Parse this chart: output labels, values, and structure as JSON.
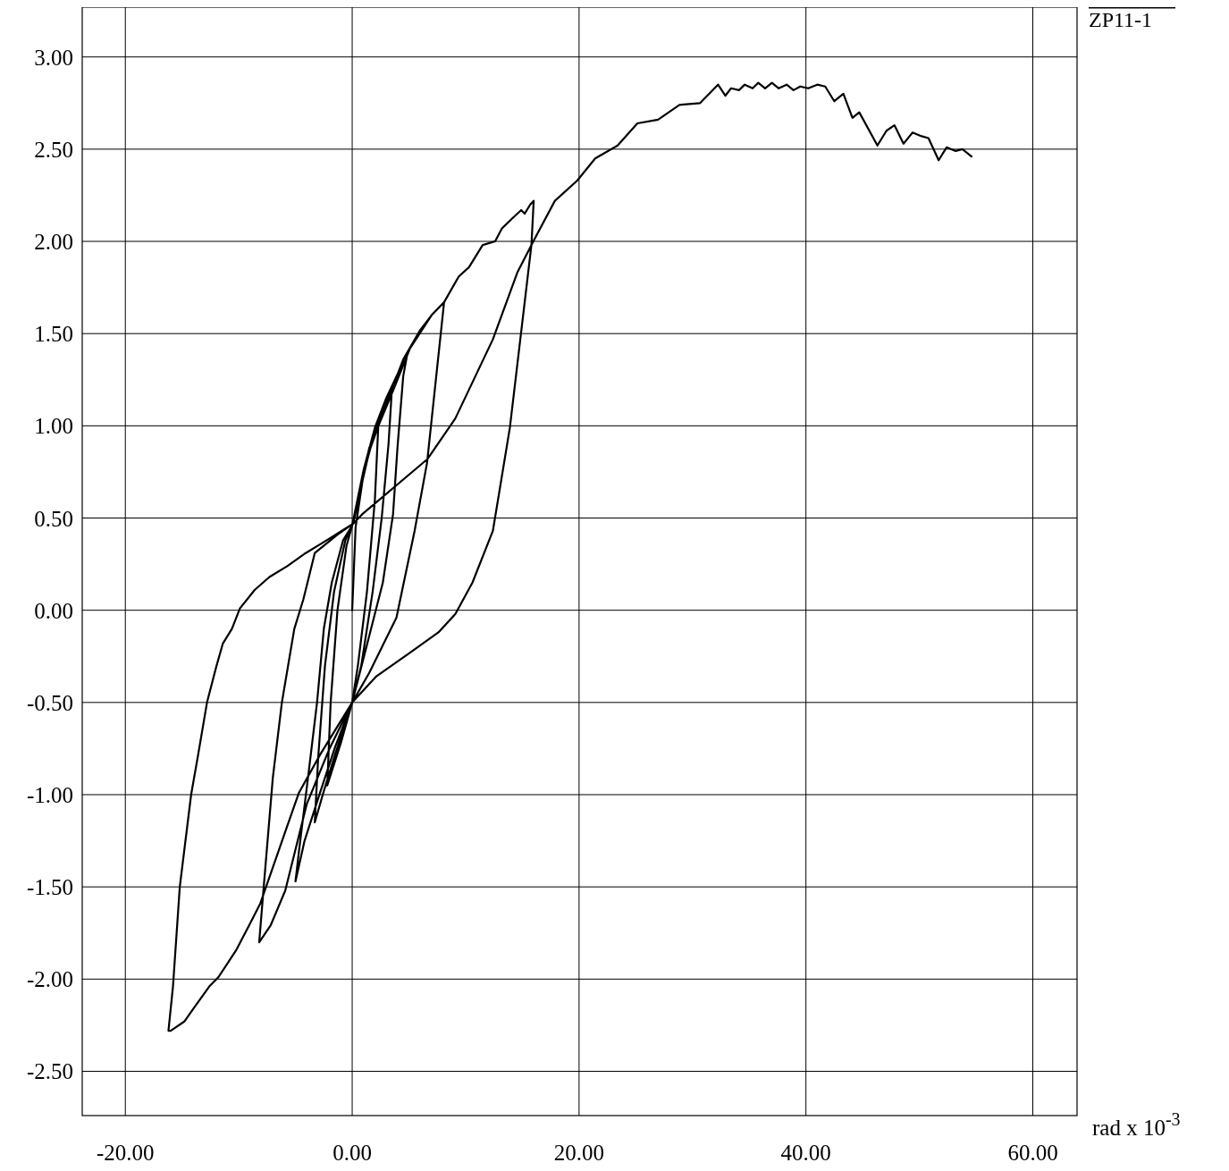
{
  "chart_data": {
    "type": "line",
    "xlabel": "rad x 10$^{-3}$",
    "xlim": [
      -23.8,
      63.9
    ],
    "ylim": [
      -2.74,
      3.27
    ],
    "xticks": [
      {
        "value": -20,
        "label": "-20.00"
      },
      {
        "value": 0,
        "label": "0.00"
      },
      {
        "value": 20,
        "label": "20.00"
      },
      {
        "value": 40,
        "label": "40.00"
      },
      {
        "value": 60,
        "label": "60.00"
      }
    ],
    "yticks": [
      {
        "value": -2.5,
        "label": "-2.50"
      },
      {
        "value": -2,
        "label": "-2.00"
      },
      {
        "value": -1.5,
        "label": "-1.50"
      },
      {
        "value": -1,
        "label": "-1.00"
      },
      {
        "value": -0.5,
        "label": "-0.50"
      },
      {
        "value": 0,
        "label": "0.00"
      },
      {
        "value": 0.5,
        "label": "0.50"
      },
      {
        "value": 1,
        "label": "1.00"
      },
      {
        "value": 1.5,
        "label": "1.50"
      },
      {
        "value": 2,
        "label": "2.00"
      },
      {
        "value": 2.5,
        "label": "2.50"
      },
      {
        "value": 3,
        "label": "3.00"
      }
    ],
    "grid": true,
    "legend": "top right",
    "series": [
      {
        "name": "ZP11-1",
        "color": "#000000",
        "x": [
          0,
          0.3,
          1,
          1.7,
          2.3,
          2.0,
          1.3,
          0.5,
          0,
          -1,
          -2.2,
          -1.9,
          -1.3,
          -0.5,
          0,
          1,
          2,
          2.8,
          3.5,
          3.2,
          2.6,
          1.8,
          0.8,
          0,
          -1.5,
          -2.5,
          -3.3,
          -3.0,
          -2.4,
          -1.6,
          -0.6,
          0,
          1,
          2,
          3,
          4,
          4.8,
          4.5,
          4.0,
          3.6,
          2.7,
          1.5,
          0,
          -1.5,
          -3,
          -4.2,
          -5.0,
          -4.7,
          -3.9,
          -3.1,
          -2.5,
          -1.8,
          -0.8,
          0,
          1.5,
          3,
          4.5,
          6,
          7,
          8.1,
          6.6,
          5.5,
          3.9,
          1.5,
          0,
          -2.0,
          -4.0,
          -5.9,
          -7.2,
          -8.2,
          -7.8,
          -7.0,
          -6.2,
          -5.1,
          -4.3,
          -3.3,
          -1.3,
          0.1,
          1.5,
          3.6,
          5.1,
          7.0,
          8.1,
          9.4,
          10.3,
          11.5,
          12.6,
          13.2,
          14.2,
          14.9,
          15.2,
          15.7,
          16.0,
          15.8,
          13.9,
          12.4,
          10.6,
          9.1,
          7.6,
          5.1,
          2.1,
          0,
          -2.8,
          -4.7,
          -5.9,
          -8.1,
          -9.1,
          -10.2,
          -11.8,
          -12.6,
          -14.0,
          -14.8,
          -16.0,
          -16.2,
          -15.8,
          -15.2,
          -14.2,
          -13.6,
          -12.8,
          -12.0,
          -11.4,
          -10.6,
          -9.9,
          -8.6,
          -7.3,
          -5.7,
          -4.1,
          -2.5,
          0.1,
          0.87,
          6.64,
          9.09,
          12.41,
          14.55,
          16.05,
          17.87,
          19.84,
          21.42,
          23.4,
          25.14,
          26.96,
          28.85,
          30.67,
          32.25,
          32.9,
          33.4,
          34.1,
          34.6,
          35.3,
          35.8,
          36.4,
          37.0,
          37.6,
          38.3,
          38.9,
          39.5,
          40.2,
          41.0,
          41.7,
          42.5,
          43.3,
          44.1,
          44.7,
          46.3,
          47.1,
          47.8,
          48.6,
          49.4,
          50.2,
          50.8,
          51.7,
          52.4,
          53.2,
          53.8,
          54.6
        ],
        "values": [
          0,
          0.45,
          0.74,
          0.9,
          1.0,
          0.6,
          0.1,
          -0.3,
          -0.5,
          -0.72,
          -0.95,
          -0.5,
          0,
          0.35,
          0.46,
          0.75,
          0.97,
          1.1,
          1.2,
          0.9,
          0.5,
          0.1,
          -0.3,
          -0.5,
          -0.78,
          -0.98,
          -1.15,
          -0.8,
          -0.3,
          0.1,
          0.38,
          0.46,
          0.76,
          0.99,
          1.15,
          1.28,
          1.37,
          1.27,
          0.89,
          0.52,
          0.15,
          -0.14,
          -0.5,
          -0.74,
          -1.02,
          -1.25,
          -1.47,
          -1.31,
          -0.91,
          -0.5,
          -0.1,
          0.15,
          0.38,
          0.46,
          0.86,
          1.12,
          1.36,
          1.52,
          1.6,
          1.67,
          0.8,
          0.43,
          -0.04,
          -0.34,
          -0.5,
          -0.75,
          -1.05,
          -1.52,
          -1.71,
          -1.8,
          -1.5,
          -0.91,
          -0.5,
          -0.1,
          0.06,
          0.31,
          0.41,
          0.47,
          0.88,
          1.19,
          1.42,
          1.6,
          1.67,
          1.81,
          1.86,
          1.98,
          2.0,
          2.07,
          2.13,
          2.17,
          2.15,
          2.2,
          2.22,
          1.98,
          0.99,
          0.43,
          0.15,
          -0.02,
          -0.12,
          -0.23,
          -0.36,
          -0.5,
          -0.78,
          -0.99,
          -1.2,
          -1.59,
          -1.71,
          -1.84,
          -1.99,
          -2.04,
          -2.16,
          -2.23,
          -2.28,
          -2.28,
          -2.04,
          -1.5,
          -1.0,
          -0.79,
          -0.5,
          -0.31,
          -0.18,
          -0.1,
          0.01,
          0.11,
          0.18,
          0.24,
          0.31,
          0.37,
          0.47,
          0.52,
          0.82,
          1.04,
          1.47,
          1.83,
          2.01,
          2.22,
          2.33,
          2.45,
          2.52,
          2.64,
          2.66,
          2.74,
          2.75,
          2.85,
          2.79,
          2.83,
          2.82,
          2.85,
          2.83,
          2.86,
          2.83,
          2.86,
          2.83,
          2.85,
          2.82,
          2.84,
          2.83,
          2.85,
          2.84,
          2.76,
          2.8,
          2.67,
          2.7,
          2.52,
          2.6,
          2.63,
          2.53,
          2.59,
          2.57,
          2.56,
          2.44,
          2.51,
          2.49,
          2.5,
          2.46
        ]
      }
    ]
  }
}
